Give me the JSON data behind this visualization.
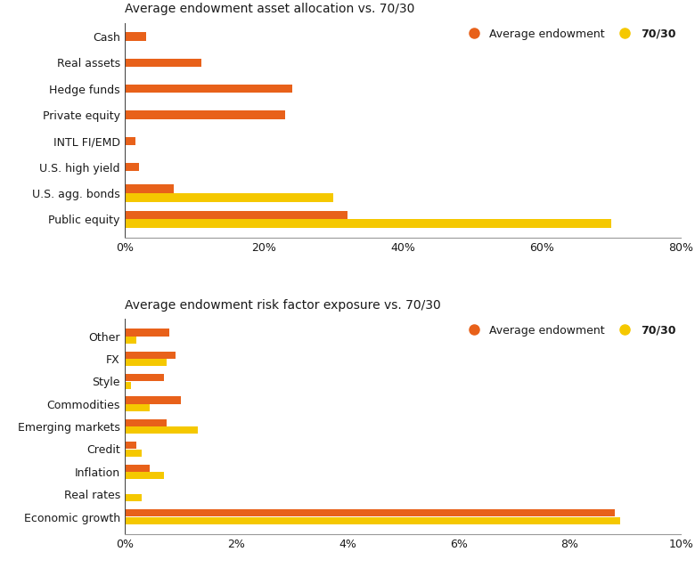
{
  "chart1": {
    "title": "Average endowment asset allocation vs. 70/30",
    "categories": [
      "Public equity",
      "U.S. agg. bonds",
      "U.S. high yield",
      "INTL FI/EMD",
      "Private equity",
      "Hedge funds",
      "Real assets",
      "Cash"
    ],
    "endowment": [
      32,
      7,
      2,
      1.5,
      23,
      24,
      11,
      3
    ],
    "portfolio": [
      70,
      30,
      0,
      0,
      0,
      0,
      0,
      0
    ],
    "xlim": [
      0,
      80
    ],
    "xticks": [
      0,
      20,
      40,
      60,
      80
    ],
    "xticklabels": [
      "0%",
      "20%",
      "40%",
      "60%",
      "80%"
    ]
  },
  "chart2": {
    "title": "Average endowment risk factor exposure vs. 70/30",
    "categories": [
      "Economic growth",
      "Real rates",
      "Inflation",
      "Credit",
      "Emerging markets",
      "Commodities",
      "Style",
      "FX",
      "Other"
    ],
    "endowment": [
      8.8,
      0.0,
      0.45,
      0.2,
      0.75,
      1.0,
      0.7,
      0.9,
      0.8
    ],
    "portfolio": [
      8.9,
      0.3,
      0.7,
      0.3,
      1.3,
      0.45,
      0.1,
      0.75,
      0.2
    ],
    "xlim": [
      0,
      10
    ],
    "xticks": [
      0,
      2,
      4,
      6,
      8,
      10
    ],
    "xticklabels": [
      "0%",
      "2%",
      "4%",
      "6%",
      "8%",
      "10%"
    ]
  },
  "colors": {
    "endowment": "#E8611A",
    "portfolio": "#F5C800",
    "background": "#FFFFFF",
    "text": "#1a1a1a",
    "spine": "#999999"
  },
  "legend": {
    "endowment_label": "Average endowment",
    "portfolio_label": "70/30"
  },
  "bar_height": 0.32,
  "bar_gap": 0.01
}
